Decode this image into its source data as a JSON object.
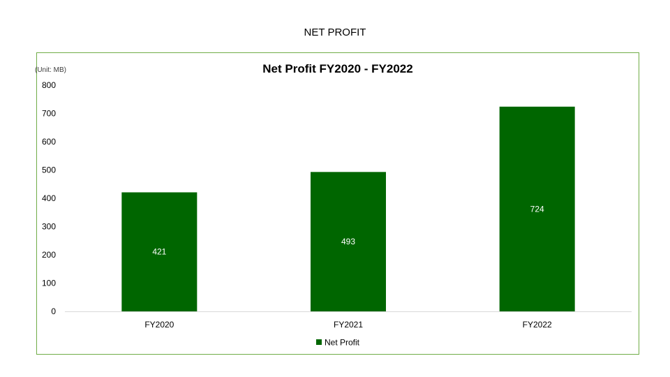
{
  "slide": {
    "title": "NET PROFIT"
  },
  "chart_data": {
    "type": "bar",
    "title": "Net Profit FY2020 - FY2022",
    "unit_label": "(Unit: MB)",
    "categories": [
      "FY2020",
      "FY2021",
      "FY2022"
    ],
    "series": [
      {
        "name": "Net Profit",
        "values": [
          421,
          493,
          724
        ],
        "color": "#006600"
      }
    ],
    "ylim": [
      0,
      800
    ],
    "yticks": [
      0,
      100,
      200,
      300,
      400,
      500,
      600,
      700,
      800
    ],
    "grid": false,
    "legend_position": "bottom",
    "data_labels": true,
    "frame_color": "#70ad47"
  }
}
